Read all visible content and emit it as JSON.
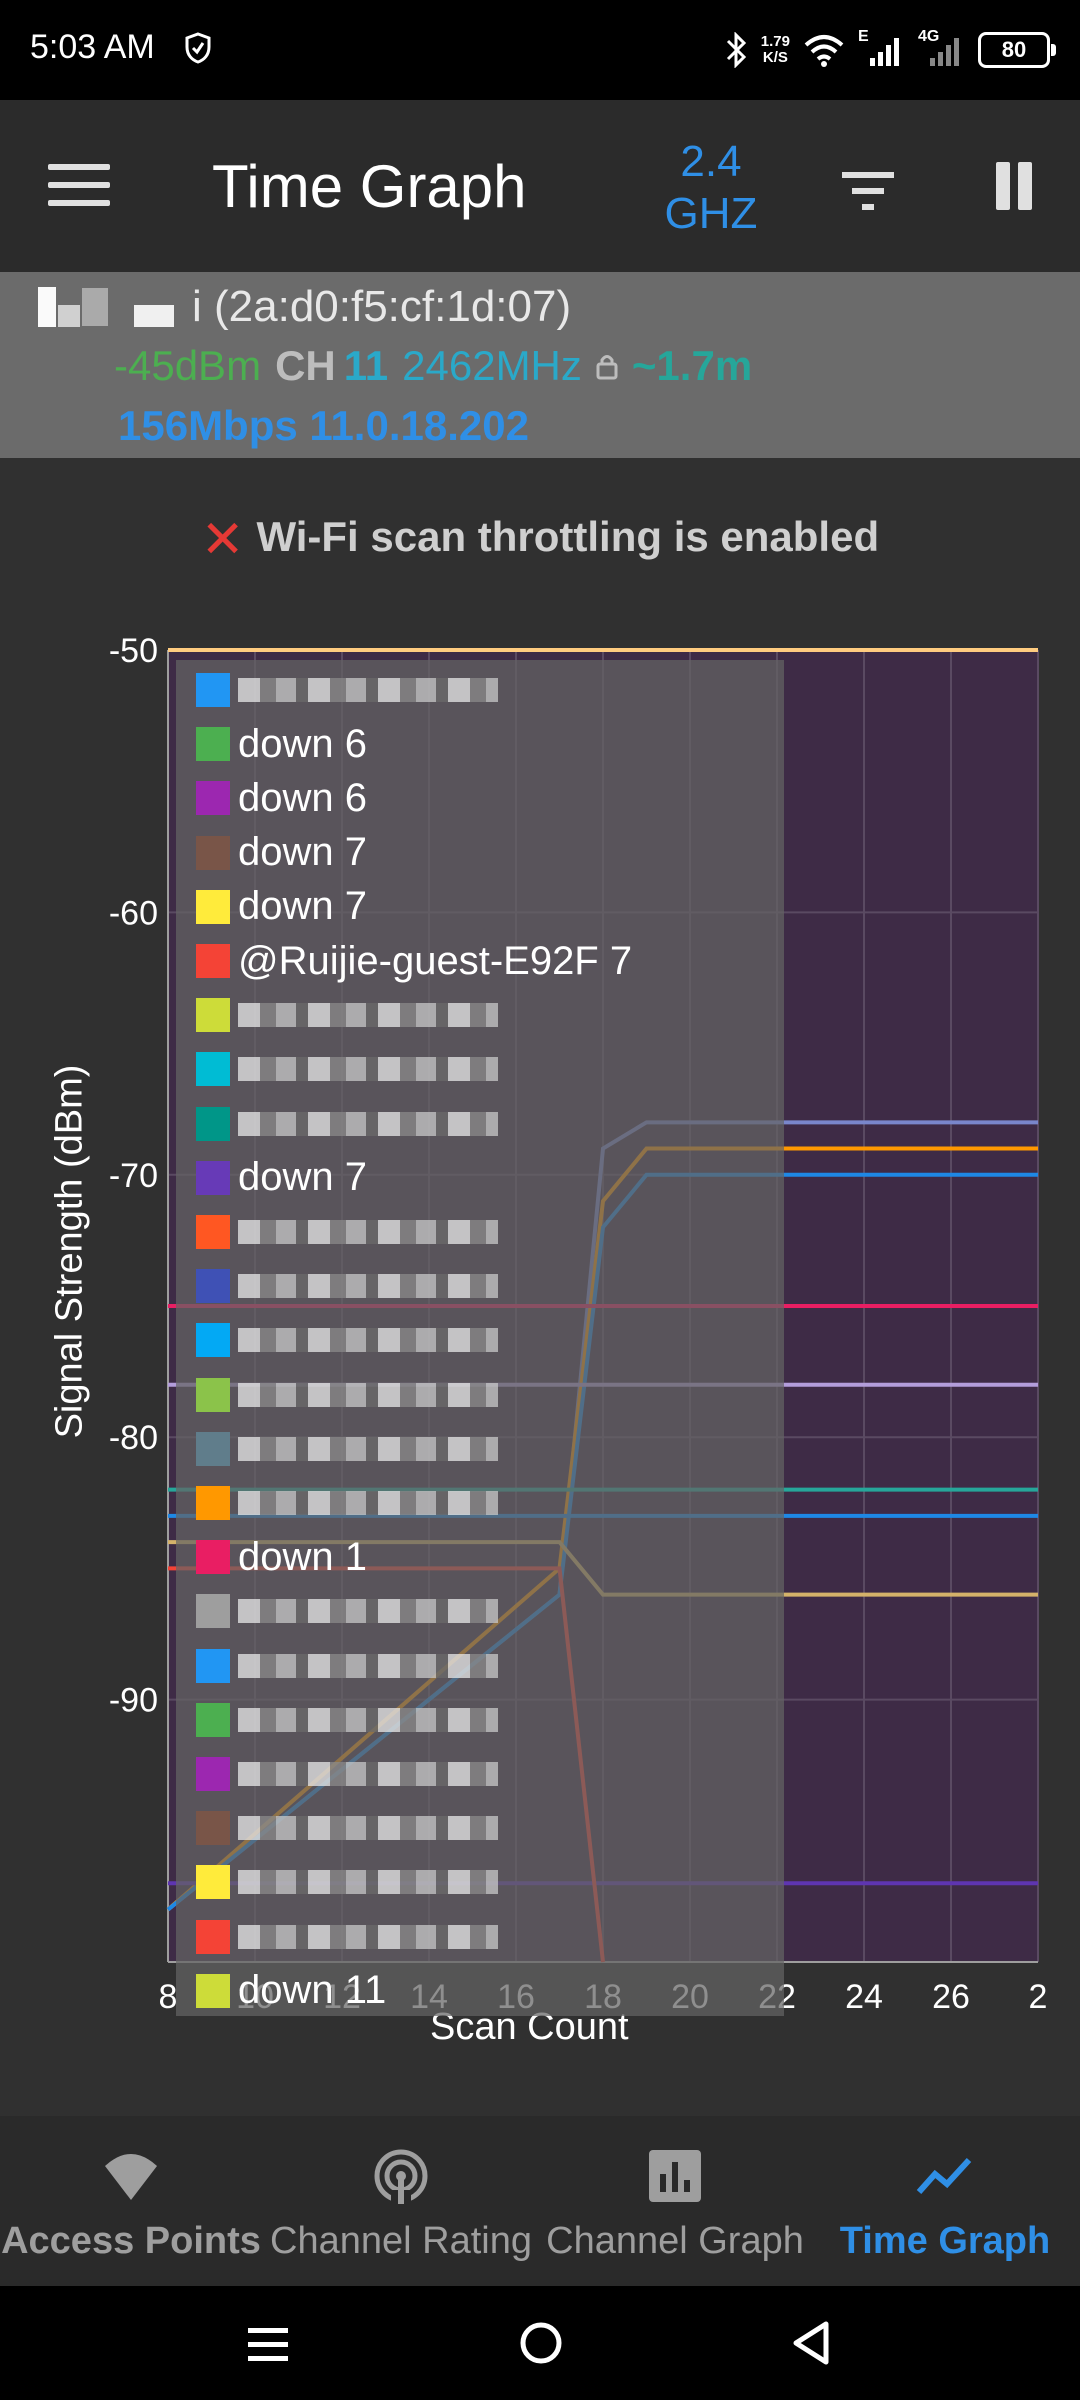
{
  "status_bar": {
    "time": "5:03 AM",
    "net_speed_value": "1.79",
    "net_speed_unit": "K/S",
    "network_type": "4G",
    "signal_type": "E",
    "battery": "80",
    "icons": [
      "shield-icon",
      "bluetooth-icon",
      "wifi-icon",
      "cell-signal-icon",
      "battery-icon"
    ]
  },
  "app_bar": {
    "title": "Time Graph",
    "band_line1": "2.4",
    "band_line2": "GHZ",
    "icons": [
      "menu-icon",
      "filter-icon",
      "pause-icon"
    ]
  },
  "connection": {
    "ssid_suffix": "i (2a:d0:f5:cf:1d:07)",
    "signal": "-45dBm",
    "ch_label": "CH",
    "channel": "11",
    "frequency": "2462MHz",
    "distance": "~1.7m",
    "speed_ip": "156Mbps 11.0.18.202"
  },
  "warning": {
    "text": "Wi-Fi scan throttling is enabled"
  },
  "chart_data": {
    "type": "line",
    "xlabel": "Scan Count",
    "ylabel": "Signal Strength (dBm)",
    "x_ticks": [
      "8",
      "10",
      "12",
      "14",
      "16",
      "18",
      "20",
      "22",
      "24",
      "26",
      "2"
    ],
    "y_ticks": [
      "-50",
      "-60",
      "-70",
      "-80",
      "-90"
    ],
    "xlim": [
      8,
      28
    ],
    "ylim": [
      -100,
      -50
    ],
    "grid": true,
    "legend_position": "top-left",
    "colors": {
      "background": "#3e2b46",
      "grid": "#5a4a62"
    },
    "legend": [
      {
        "label": "",
        "color": "#2196f3"
      },
      {
        "label": "down 6",
        "color": "#4caf50"
      },
      {
        "label": "down 6",
        "color": "#9c27b0"
      },
      {
        "label": "down 7",
        "color": "#795548"
      },
      {
        "label": "down 7",
        "color": "#ffeb3b"
      },
      {
        "label": "@Ruijie-guest-E92F 7",
        "color": "#f44336"
      },
      {
        "label": "",
        "color": "#cddc39"
      },
      {
        "label": "",
        "color": "#00bcd4"
      },
      {
        "label": "",
        "color": "#009688"
      },
      {
        "label": "down 7",
        "color": "#673ab7"
      },
      {
        "label": "",
        "color": "#ff5722"
      },
      {
        "label": "",
        "color": "#3f51b5"
      },
      {
        "label": "",
        "color": "#03a9f4"
      },
      {
        "label": "",
        "color": "#8bc34a"
      },
      {
        "label": "",
        "color": "#607d8b"
      },
      {
        "label": "",
        "color": "#ff9800"
      },
      {
        "label": "down 1",
        "color": "#e91e63"
      },
      {
        "label": "",
        "color": "#9e9e9e"
      },
      {
        "label": "",
        "color": "#2196f3"
      },
      {
        "label": "",
        "color": "#4caf50"
      },
      {
        "label": "",
        "color": "#9c27b0"
      },
      {
        "label": "",
        "color": "#795548"
      },
      {
        "label": "",
        "color": "#ffeb3b"
      },
      {
        "label": "",
        "color": "#f44336"
      },
      {
        "label": "down 11",
        "color": "#cddc39"
      }
    ],
    "series": [
      {
        "color": "#ffcc80",
        "x": [
          8,
          28
        ],
        "y": [
          -50,
          -50
        ]
      },
      {
        "color": "#7986cb",
        "x": [
          8,
          17,
          18,
          19,
          28
        ],
        "y": [
          -98,
          -86,
          -69,
          -68,
          -68
        ]
      },
      {
        "color": "#ff9800",
        "x": [
          8,
          17,
          18,
          19,
          28
        ],
        "y": [
          -98,
          -85,
          -71,
          -69,
          -69
        ]
      },
      {
        "color": "#1e88e5",
        "x": [
          8,
          17,
          18,
          19,
          28
        ],
        "y": [
          -98,
          -86,
          -72,
          -70,
          -70
        ]
      },
      {
        "color": "#e91e63",
        "x": [
          8,
          28
        ],
        "y": [
          -75,
          -75
        ]
      },
      {
        "color": "#b39ddb",
        "x": [
          8,
          28
        ],
        "y": [
          -78,
          -78
        ]
      },
      {
        "color": "#26a69a",
        "x": [
          8,
          28
        ],
        "y": [
          -82,
          -82
        ]
      },
      {
        "color": "#1e88e5",
        "x": [
          8,
          28
        ],
        "y": [
          -83,
          -83
        ]
      },
      {
        "color": "#d4b26a",
        "x": [
          8,
          17,
          18,
          28
        ],
        "y": [
          -84,
          -84,
          -86,
          -86
        ]
      },
      {
        "color": "#5e35b1",
        "x": [
          8,
          28
        ],
        "y": [
          -97,
          -97
        ]
      },
      {
        "color": "#f44336",
        "x": [
          8,
          17,
          18
        ],
        "y": [
          -85,
          -85,
          -100
        ]
      }
    ]
  },
  "bottom_nav": {
    "items": [
      {
        "label": "Access Points",
        "icon": "wifi-icon"
      },
      {
        "label": "Channel Rating",
        "icon": "radar-icon"
      },
      {
        "label": "Channel Graph",
        "icon": "bar-chart-icon"
      },
      {
        "label": "Time Graph",
        "icon": "line-chart-icon"
      }
    ]
  },
  "system_nav": {
    "icons": [
      "recents-icon",
      "home-icon",
      "back-icon"
    ]
  }
}
